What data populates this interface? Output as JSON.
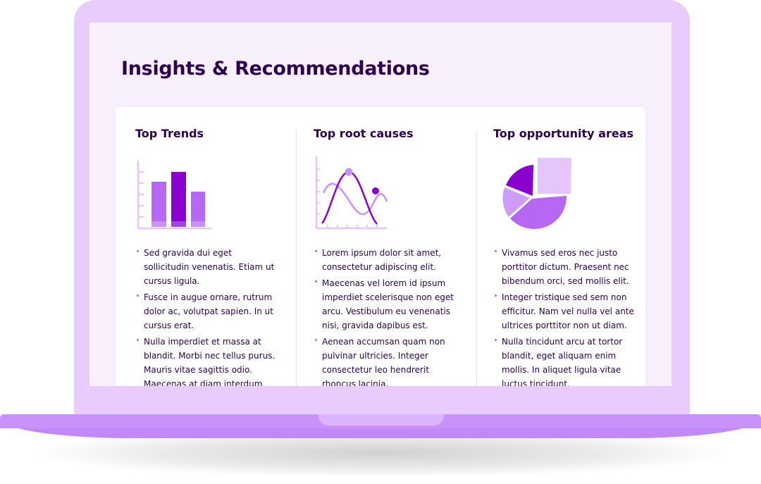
{
  "page": {
    "title": "Insights & Recommendations"
  },
  "colors": {
    "accent_dark": "#8a00cc",
    "accent": "#b668f5",
    "accent_light": "#e4c6fd",
    "text": "#2d0150",
    "frame": "#e8ccfd"
  },
  "columns": [
    {
      "title": "Top Trends",
      "illustration": "bar-chart-icon",
      "bullets": [
        "Sed gravida dui eget sollicitudin venenatis. Etiam ut cursus ligula.",
        "Fusce in augue ornare, rutrum dolor ac, volutpat sapien. In ut cursus erat.",
        "Nulla imperdiet et massa at blandit. Morbi nec tellus purus. Mauris vitae sagittis odio. Maecenas at diam interdum, faucibus metus ut, commodo erat."
      ]
    },
    {
      "title": "Top root causes",
      "illustration": "wave-chart-icon",
      "bullets": [
        "Lorem ipsum dolor sit amet, consectetur adipiscing elit.",
        "Maecenas vel lorem id ipsum imperdiet scelerisque non eget arcu. Vestibulum eu venenatis nisi, gravida dapibus est.",
        "Aenean accumsan quam non pulvinar ultricies. Integer consectetur leo hendrerit rhoncus lacinia."
      ]
    },
    {
      "title": "Top opportunity areas",
      "illustration": "pie-chart-icon",
      "bullets": [
        "Vivamus sed eros nec justo porttitor dictum. Praesent nec bibendum orci, sed mollis elit.",
        "Integer tristique sed sem non efficitur. Nam vel nulla vel ante ultrices porttitor non ut diam.",
        "Nulla tincidunt arcu at tortor blandit, eget aliquam enim mollis. In aliquet ligula vitae luctus tincidunt."
      ]
    }
  ]
}
